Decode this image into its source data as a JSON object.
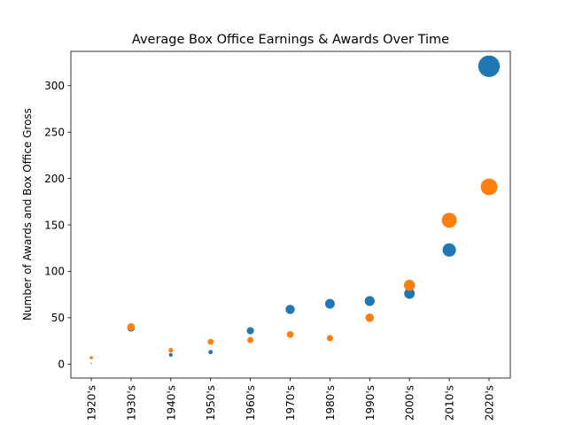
{
  "chart_data": {
    "type": "scatter",
    "title": "Average Box Office Earnings & Awards Over Time",
    "xlabel": "",
    "ylabel": "Number of Awards and Box Office Gross",
    "categories": [
      "1920's",
      "1930's",
      "1940's",
      "1950's",
      "1960's",
      "1970's",
      "1980's",
      "1990's",
      "2000's",
      "2010's",
      "2020's"
    ],
    "ylim": [
      -15,
      337
    ],
    "yticks": [
      0,
      50,
      100,
      150,
      200,
      250,
      300
    ],
    "grid": false,
    "legend": false,
    "series": [
      {
        "color": "#1f77b4",
        "values": [
          1,
          39,
          10,
          13,
          36,
          59,
          65,
          68,
          76,
          123,
          321
        ]
      },
      {
        "color": "#ff7f0e",
        "values": [
          7,
          40,
          15,
          24,
          26,
          32,
          28,
          50,
          85,
          155,
          191
        ]
      }
    ]
  }
}
